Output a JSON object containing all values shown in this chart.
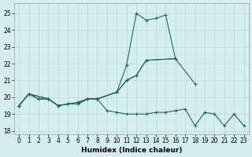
{
  "xlabel": "Humidex (Indice chaleur)",
  "background_color": "#d5eeee",
  "grid_color": "#b8d8d8",
  "line_color": "#1a6b5a",
  "ylim": [
    17.8,
    25.6
  ],
  "xlim": [
    -0.5,
    23.5
  ],
  "yticks": [
    18,
    19,
    20,
    21,
    22,
    23,
    24,
    25
  ],
  "xticks": [
    0,
    1,
    2,
    3,
    4,
    5,
    6,
    7,
    8,
    9,
    10,
    11,
    12,
    13,
    14,
    15,
    16,
    17,
    18,
    19,
    20,
    21,
    22,
    23
  ],
  "curves": [
    {
      "x": [
        0,
        1,
        2,
        3,
        4,
        5,
        6,
        7,
        8,
        10,
        11,
        12,
        13,
        14,
        15,
        16
      ],
      "y": [
        19.5,
        20.2,
        19.9,
        19.9,
        19.5,
        19.6,
        19.6,
        19.9,
        19.9,
        20.3,
        21.9,
        25.0,
        24.6,
        24.7,
        24.9,
        22.3
      ]
    },
    {
      "x": [
        0,
        1,
        3,
        4,
        5,
        6,
        7,
        8,
        10,
        11,
        12,
        13,
        16
      ],
      "y": [
        19.5,
        20.2,
        19.9,
        19.5,
        19.6,
        19.6,
        19.9,
        19.9,
        20.3,
        21.0,
        21.3,
        22.2,
        22.3
      ]
    },
    {
      "x": [
        0,
        1,
        3,
        4,
        5,
        6,
        7,
        8,
        10,
        11,
        12,
        13,
        16,
        18
      ],
      "y": [
        19.5,
        20.2,
        19.9,
        19.5,
        19.6,
        19.6,
        19.9,
        19.9,
        20.3,
        21.0,
        21.3,
        22.2,
        22.3,
        20.8
      ]
    },
    {
      "x": [
        0,
        1,
        2,
        3,
        4,
        5,
        6,
        7,
        8,
        9,
        10,
        11,
        12,
        13,
        14,
        15,
        16,
        17,
        18,
        19,
        20,
        21,
        22,
        23
      ],
      "y": [
        19.5,
        20.2,
        19.9,
        19.9,
        19.5,
        19.6,
        19.7,
        19.9,
        19.9,
        19.2,
        19.1,
        19.0,
        19.0,
        19.0,
        19.1,
        19.1,
        19.2,
        19.3,
        18.3,
        19.1,
        19.0,
        18.3,
        19.0,
        18.3
      ]
    }
  ]
}
